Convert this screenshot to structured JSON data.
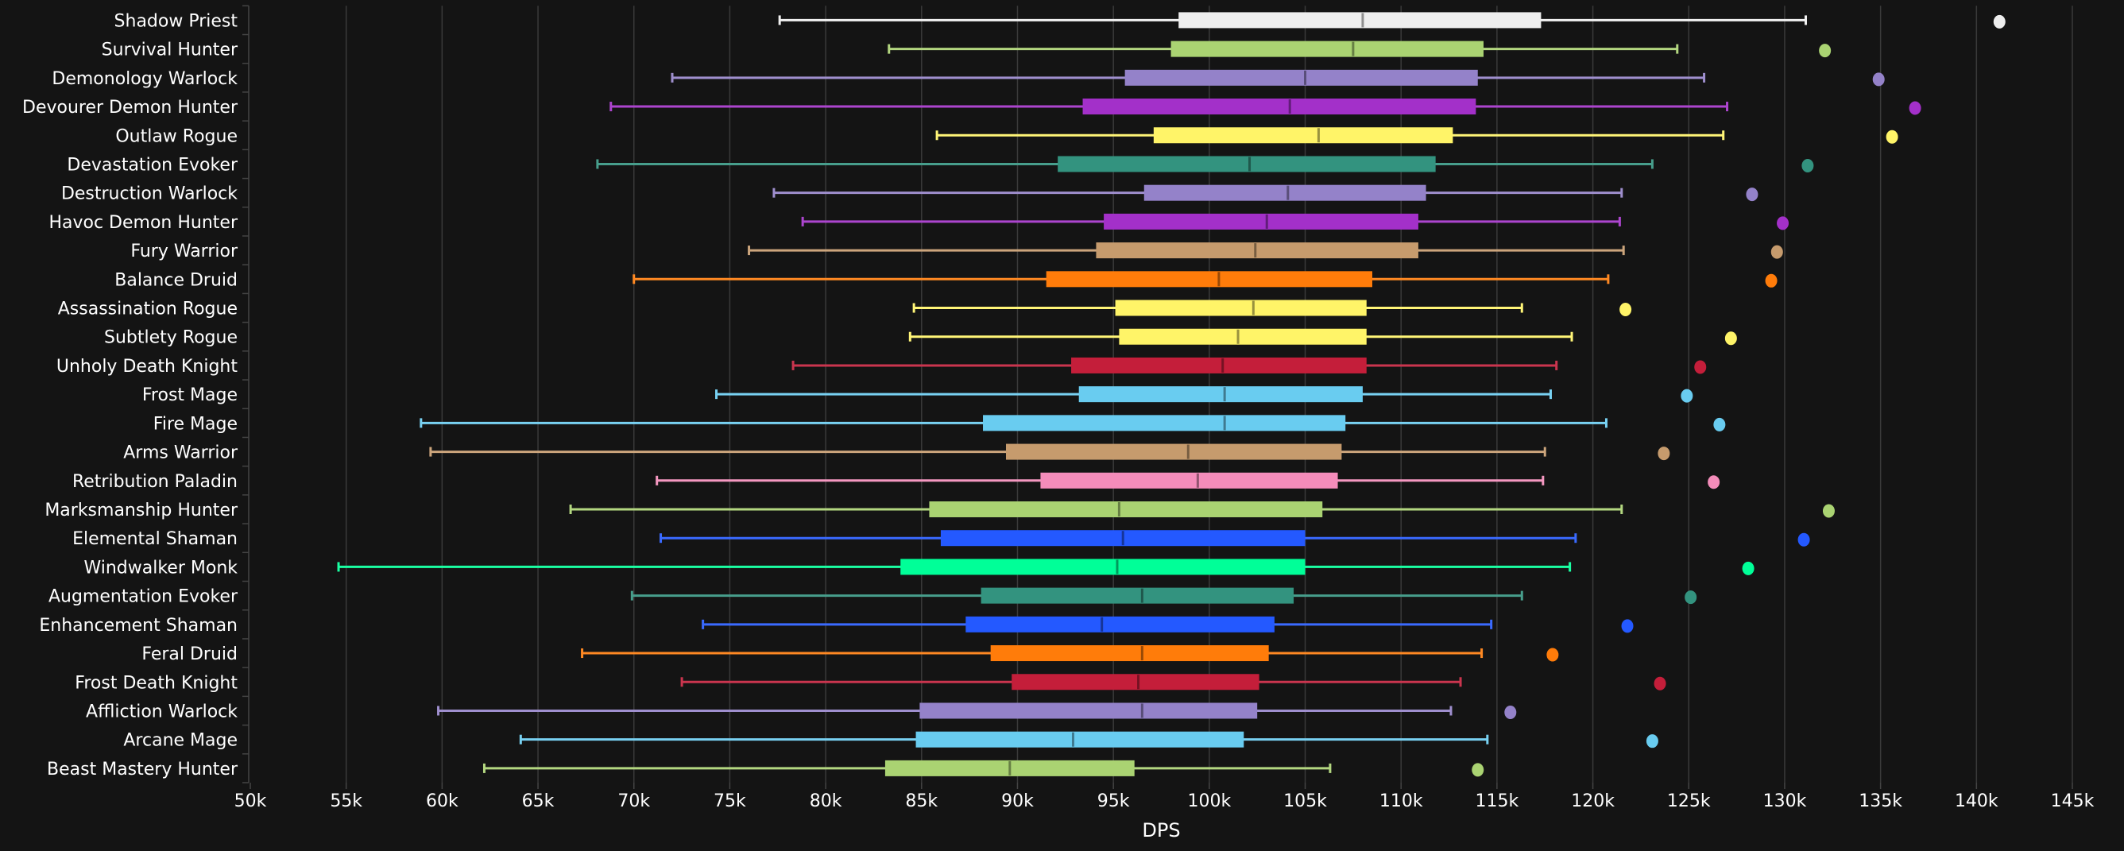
{
  "chart_data": {
    "type": "boxplot",
    "title": "",
    "xlabel": "DPS",
    "ylabel": "",
    "xlim": [
      50000,
      145000
    ],
    "x_ticks": [
      50000,
      55000,
      60000,
      65000,
      70000,
      75000,
      80000,
      85000,
      90000,
      95000,
      100000,
      105000,
      110000,
      115000,
      120000,
      125000,
      130000,
      135000,
      140000,
      145000
    ],
    "x_tick_labels": [
      "50k",
      "55k",
      "60k",
      "65k",
      "70k",
      "75k",
      "80k",
      "85k",
      "90k",
      "95k",
      "100k",
      "105k",
      "110k",
      "115k",
      "120k",
      "125k",
      "130k",
      "135k",
      "140k",
      "145k"
    ],
    "grid": "vertical",
    "legend": "none",
    "background": "#141414",
    "series": [
      {
        "name": "Shadow Priest",
        "color": "#EEEEEE",
        "min": 77600,
        "q1": 98400,
        "median": 108000,
        "q3": 117300,
        "max": 131100,
        "outlier": 141200
      },
      {
        "name": "Survival Hunter",
        "color": "#AAD372",
        "min": 83300,
        "q1": 98000,
        "median": 107500,
        "q3": 114300,
        "max": 124400,
        "outlier": 132100
      },
      {
        "name": "Demonology Warlock",
        "color": "#9482C9",
        "min": 72000,
        "q1": 95600,
        "median": 105000,
        "q3": 114000,
        "max": 125800,
        "outlier": 134900
      },
      {
        "name": "Devourer Demon Hunter",
        "color": "#A330C9",
        "min": 68800,
        "q1": 93400,
        "median": 104200,
        "q3": 113900,
        "max": 127000,
        "outlier": 136800
      },
      {
        "name": "Outlaw Rogue",
        "color": "#FFF468",
        "min": 85800,
        "q1": 97100,
        "median": 105700,
        "q3": 112700,
        "max": 126800,
        "outlier": 135600
      },
      {
        "name": "Devastation Evoker",
        "color": "#33937F",
        "min": 68100,
        "q1": 92100,
        "median": 102100,
        "q3": 111800,
        "max": 123100,
        "outlier": 131200
      },
      {
        "name": "Destruction Warlock",
        "color": "#9482C9",
        "min": 77300,
        "q1": 96600,
        "median": 104100,
        "q3": 111300,
        "max": 121500,
        "outlier": 128300
      },
      {
        "name": "Havoc Demon Hunter",
        "color": "#A330C9",
        "min": 78800,
        "q1": 94500,
        "median": 103000,
        "q3": 110900,
        "max": 121400,
        "outlier": 129900
      },
      {
        "name": "Fury Warrior",
        "color": "#C69B6D",
        "min": 76000,
        "q1": 94100,
        "median": 102400,
        "q3": 110900,
        "max": 121600,
        "outlier": 129600
      },
      {
        "name": "Balance Druid",
        "color": "#FF7C0A",
        "min": 70000,
        "q1": 91500,
        "median": 100500,
        "q3": 108500,
        "max": 120800,
        "outlier": 129300
      },
      {
        "name": "Assassination Rogue",
        "color": "#FFF468",
        "min": 84600,
        "q1": 95100,
        "median": 102300,
        "q3": 108200,
        "max": 116300,
        "outlier": 121700
      },
      {
        "name": "Subtlety Rogue",
        "color": "#FFF468",
        "min": 84400,
        "q1": 95300,
        "median": 101500,
        "q3": 108200,
        "max": 118900,
        "outlier": 127200
      },
      {
        "name": "Unholy Death Knight",
        "color": "#C41E3A",
        "min": 78300,
        "q1": 92800,
        "median": 100700,
        "q3": 108200,
        "max": 118100,
        "outlier": 125600
      },
      {
        "name": "Frost Mage",
        "color": "#69CCF0",
        "min": 74300,
        "q1": 93200,
        "median": 100800,
        "q3": 108000,
        "max": 117800,
        "outlier": 124900
      },
      {
        "name": "Fire Mage",
        "color": "#69CCF0",
        "min": 58900,
        "q1": 88200,
        "median": 100800,
        "q3": 107100,
        "max": 120700,
        "outlier": 126600
      },
      {
        "name": "Arms Warrior",
        "color": "#C69B6D",
        "min": 59400,
        "q1": 89400,
        "median": 98900,
        "q3": 106900,
        "max": 117500,
        "outlier": 123700
      },
      {
        "name": "Retribution Paladin",
        "color": "#F48CBA",
        "min": 71200,
        "q1": 91200,
        "median": 99400,
        "q3": 106700,
        "max": 117400,
        "outlier": 126300
      },
      {
        "name": "Marksmanship Hunter",
        "color": "#AAD372",
        "min": 66700,
        "q1": 85400,
        "median": 95300,
        "q3": 105900,
        "max": 121500,
        "outlier": 132300
      },
      {
        "name": "Elemental Shaman",
        "color": "#2459FF",
        "min": 71400,
        "q1": 86000,
        "median": 95500,
        "q3": 105000,
        "max": 119100,
        "outlier": 131000
      },
      {
        "name": "Windwalker Monk",
        "color": "#00FF98",
        "min": 54600,
        "q1": 83900,
        "median": 95200,
        "q3": 105000,
        "max": 118800,
        "outlier": 128100
      },
      {
        "name": "Augmentation Evoker",
        "color": "#33937F",
        "min": 69900,
        "q1": 88100,
        "median": 96500,
        "q3": 104400,
        "max": 116300,
        "outlier": 125100
      },
      {
        "name": "Enhancement Shaman",
        "color": "#2459FF",
        "min": 73600,
        "q1": 87300,
        "median": 94400,
        "q3": 103400,
        "max": 114700,
        "outlier": 121800
      },
      {
        "name": "Feral Druid",
        "color": "#FF7C0A",
        "min": 67300,
        "q1": 88600,
        "median": 96500,
        "q3": 103100,
        "max": 114200,
        "outlier": 117900
      },
      {
        "name": "Frost Death Knight",
        "color": "#C41E3A",
        "min": 72500,
        "q1": 89700,
        "median": 96300,
        "q3": 102600,
        "max": 113100,
        "outlier": 123500
      },
      {
        "name": "Affliction Warlock",
        "color": "#9482C9",
        "min": 59800,
        "q1": 84900,
        "median": 96500,
        "q3": 102500,
        "max": 112600,
        "outlier": 115700
      },
      {
        "name": "Arcane Mage",
        "color": "#69CCF0",
        "min": 64100,
        "q1": 84700,
        "median": 92900,
        "q3": 101800,
        "max": 114500,
        "outlier": 123100
      },
      {
        "name": "Beast Mastery Hunter",
        "color": "#AAD372",
        "min": 62200,
        "q1": 83100,
        "median": 89600,
        "q3": 96100,
        "max": 106300,
        "outlier": 114000
      }
    ]
  }
}
